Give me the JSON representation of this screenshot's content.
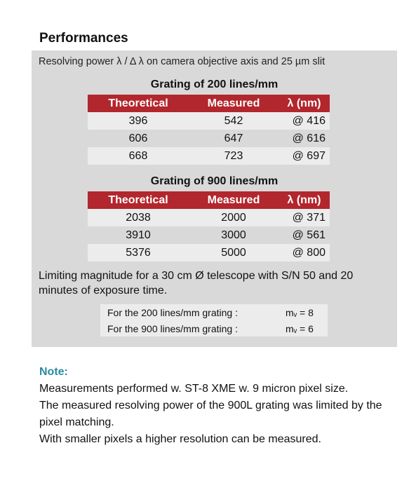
{
  "heading": "Performances",
  "panel": {
    "subtitle": "Resolving power  λ / Δ λ on camera objective axis and 25 µm slit",
    "tables": [
      {
        "title": "Grating of 200 lines/mm",
        "headers": [
          "Theoretical",
          "Measured",
          "λ (nm)"
        ],
        "rows": [
          [
            "396",
            "542",
            "@ 416"
          ],
          [
            "606",
            "647",
            "@ 616"
          ],
          [
            "668",
            "723",
            "@ 697"
          ]
        ]
      },
      {
        "title": "Grating of 900 lines/mm",
        "headers": [
          "Theoretical",
          "Measured",
          "λ (nm)"
        ],
        "rows": [
          [
            "2038",
            "2000",
            "@ 371"
          ],
          [
            "3910",
            "3000",
            "@ 561"
          ],
          [
            "5376",
            "5000",
            "@ 800"
          ]
        ]
      }
    ],
    "limiting": "Limiting magnitude for a 30 cm Ø telescope with S/N 50 and 20 minutes of exposure time.",
    "magnitudes": [
      {
        "label": "For the 200 lines/mm grating :",
        "value": "mᵥ = 8"
      },
      {
        "label": "For the 900 lines/mm grating :",
        "value": "mᵥ = 6"
      }
    ]
  },
  "note": {
    "title": "Note:",
    "lines": [
      "Measurements performed w. ST-8 XME w. 9 micron pixel size.",
      "The measured resolving power of the 900L grating was limited by the pixel matching.",
      "With smaller pixels a higher resolution can be measured."
    ]
  }
}
